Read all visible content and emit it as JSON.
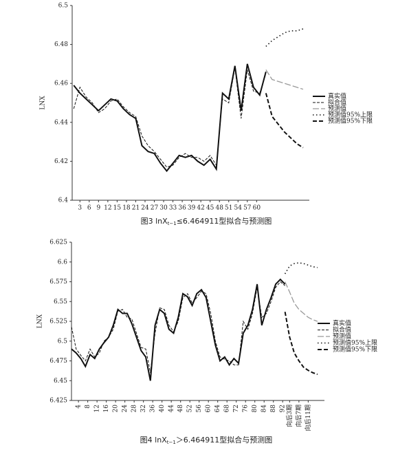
{
  "chart_data": [
    {
      "type": "line",
      "ylabel": "LNX",
      "caption": {
        "main": "图3 lnX",
        "sub": "t−1",
        "rest": "≤6.464911型拟合与预测图"
      },
      "x": [
        1,
        3,
        5,
        7,
        9,
        11,
        13,
        15,
        17,
        19,
        21,
        23,
        25,
        27,
        29,
        31,
        33,
        35,
        37,
        39,
        41,
        43,
        45,
        47,
        49,
        51,
        53,
        55,
        57,
        59,
        61,
        63,
        65,
        67,
        69,
        71,
        73,
        75
      ],
      "xlim": [
        0.5,
        77
      ],
      "xticks": [
        3,
        6,
        9,
        12,
        15,
        18,
        21,
        24,
        27,
        30,
        33,
        36,
        39,
        42,
        45,
        48,
        51,
        54,
        57,
        60
      ],
      "ylim": [
        6.4,
        6.5
      ],
      "yticks": [
        6.4,
        6.42,
        6.44,
        6.46,
        6.48,
        6.5
      ],
      "series": [
        {
          "name": "真实值",
          "color": "#111111",
          "style": "solid",
          "values": [
            6.459,
            6.455,
            6.452,
            6.449,
            6.446,
            6.449,
            6.452,
            6.451,
            6.447,
            6.444,
            6.442,
            6.428,
            6.425,
            6.424,
            6.419,
            6.415,
            6.419,
            6.423,
            6.422,
            6.423,
            6.42,
            6.418,
            6.421,
            6.416,
            6.455,
            6.452,
            6.469,
            6.446,
            6.47,
            6.458,
            6.454,
            6.466,
            null,
            null,
            null,
            null,
            null,
            null
          ]
        },
        {
          "name": "拟合值",
          "color": "#111111",
          "style": "dashed",
          "values": [
            6.447,
            6.458,
            6.453,
            6.45,
            6.445,
            6.447,
            6.451,
            6.452,
            6.448,
            6.445,
            6.443,
            6.433,
            6.428,
            6.425,
            6.421,
            6.417,
            6.418,
            6.422,
            6.424,
            6.422,
            6.422,
            6.42,
            6.423,
            6.418,
            6.452,
            6.45,
            6.468,
            6.442,
            6.467,
            6.456,
            6.455,
            6.465,
            null,
            null,
            null,
            null,
            null,
            null
          ]
        },
        {
          "name": "预测值",
          "color": "#999999",
          "style": "long-dash",
          "values": [
            null,
            null,
            null,
            null,
            null,
            null,
            null,
            null,
            null,
            null,
            null,
            null,
            null,
            null,
            null,
            null,
            null,
            null,
            null,
            null,
            null,
            null,
            null,
            null,
            null,
            null,
            null,
            null,
            null,
            null,
            null,
            6.467,
            6.462,
            6.461,
            6.46,
            6.459,
            6.458,
            6.457
          ]
        },
        {
          "name": "预测值95%上限",
          "color": "#111111",
          "style": "dotted",
          "values": [
            null,
            null,
            null,
            null,
            null,
            null,
            null,
            null,
            null,
            null,
            null,
            null,
            null,
            null,
            null,
            null,
            null,
            null,
            null,
            null,
            null,
            null,
            null,
            null,
            null,
            null,
            null,
            null,
            null,
            null,
            null,
            6.479,
            6.482,
            6.484,
            6.486,
            6.487,
            6.487,
            6.488
          ]
        },
        {
          "name": "预测值95%下限",
          "color": "#111111",
          "style": "bold-dashed",
          "values": [
            null,
            null,
            null,
            null,
            null,
            null,
            null,
            null,
            null,
            null,
            null,
            null,
            null,
            null,
            null,
            null,
            null,
            null,
            null,
            null,
            null,
            null,
            null,
            null,
            null,
            null,
            null,
            null,
            null,
            null,
            null,
            6.455,
            6.443,
            6.439,
            6.435,
            6.432,
            6.429,
            6.427
          ]
        }
      ]
    },
    {
      "type": "line",
      "ylabel": "LNX",
      "caption": {
        "main": "图4 lnX",
        "sub": "t−1",
        "rest": "＞6.464911型拟合与预测图"
      },
      "x": [
        1,
        3,
        5,
        7,
        9,
        11,
        13,
        15,
        17,
        19,
        21,
        23,
        25,
        27,
        29,
        31,
        33,
        35,
        37,
        39,
        41,
        43,
        45,
        47,
        49,
        51,
        53,
        55,
        57,
        59,
        61,
        63,
        65,
        67,
        69,
        71,
        73,
        75,
        77,
        79,
        81,
        83,
        85,
        87,
        89,
        91,
        93,
        95,
        97,
        99,
        101,
        103,
        105,
        107
      ],
      "xlim": [
        1,
        110
      ],
      "xticks": [
        4,
        8,
        12,
        16,
        20,
        24,
        28,
        32,
        36,
        40,
        44,
        48,
        52,
        56,
        60,
        64,
        68,
        72,
        76,
        80,
        84,
        88,
        92,
        {
          "value": 95,
          "label": "向后3期"
        },
        {
          "value": 99,
          "label": "向后7期"
        },
        {
          "value": 103,
          "label": "向后11期"
        }
      ],
      "ylim": [
        6.425,
        6.625
      ],
      "yticks": [
        6.425,
        6.45,
        6.475,
        6.5,
        6.525,
        6.55,
        6.575,
        6.6,
        6.625
      ],
      "series": [
        {
          "name": "真实值",
          "color": "#111111",
          "style": "solid",
          "values": [
            6.49,
            6.485,
            6.478,
            6.468,
            6.483,
            6.478,
            6.49,
            6.498,
            6.505,
            6.52,
            6.54,
            6.535,
            6.535,
            6.522,
            6.505,
            6.488,
            6.48,
            6.45,
            6.52,
            6.54,
            6.535,
            6.515,
            6.51,
            6.53,
            6.56,
            6.556,
            6.545,
            6.56,
            6.565,
            6.555,
            6.525,
            6.495,
            6.475,
            6.48,
            6.47,
            6.478,
            6.472,
            6.51,
            6.52,
            6.54,
            6.572,
            6.52,
            6.54,
            6.555,
            6.572,
            6.578,
            6.572,
            null,
            null,
            null,
            null,
            null,
            null,
            null
          ]
        },
        {
          "name": "拟合值",
          "color": "#111111",
          "style": "dashed",
          "values": [
            6.518,
            6.49,
            6.482,
            6.475,
            6.49,
            6.48,
            6.485,
            6.5,
            6.505,
            6.515,
            6.538,
            6.54,
            6.53,
            6.528,
            6.51,
            6.492,
            6.49,
            6.46,
            6.51,
            6.542,
            6.54,
            6.52,
            6.512,
            6.525,
            6.555,
            6.56,
            6.548,
            6.555,
            6.563,
            6.56,
            6.535,
            6.5,
            6.48,
            6.477,
            6.475,
            6.47,
            6.47,
            6.525,
            6.515,
            6.535,
            6.568,
            6.53,
            6.535,
            6.55,
            6.568,
            6.575,
            6.57,
            null,
            null,
            null,
            null,
            null,
            null,
            null
          ]
        },
        {
          "name": "预测值",
          "color": "#999999",
          "style": "long-dash",
          "values": [
            null,
            null,
            null,
            null,
            null,
            null,
            null,
            null,
            null,
            null,
            null,
            null,
            null,
            null,
            null,
            null,
            null,
            null,
            null,
            null,
            null,
            null,
            null,
            null,
            null,
            null,
            null,
            null,
            null,
            null,
            null,
            null,
            null,
            null,
            null,
            null,
            null,
            null,
            null,
            null,
            null,
            null,
            null,
            null,
            null,
            null,
            6.575,
            6.562,
            6.548,
            6.54,
            6.535,
            6.53,
            6.527,
            6.525
          ]
        },
        {
          "name": "预测值95%上限",
          "color": "#111111",
          "style": "dotted",
          "values": [
            null,
            null,
            null,
            null,
            null,
            null,
            null,
            null,
            null,
            null,
            null,
            null,
            null,
            null,
            null,
            null,
            null,
            null,
            null,
            null,
            null,
            null,
            null,
            null,
            null,
            null,
            null,
            null,
            null,
            null,
            null,
            null,
            null,
            null,
            null,
            null,
            null,
            null,
            null,
            null,
            null,
            null,
            null,
            null,
            null,
            null,
            6.585,
            6.595,
            6.598,
            6.599,
            6.598,
            6.596,
            6.594,
            6.593
          ]
        },
        {
          "name": "预测值95%下限",
          "color": "#111111",
          "style": "bold-dashed",
          "values": [
            null,
            null,
            null,
            null,
            null,
            null,
            null,
            null,
            null,
            null,
            null,
            null,
            null,
            null,
            null,
            null,
            null,
            null,
            null,
            null,
            null,
            null,
            null,
            null,
            null,
            null,
            null,
            null,
            null,
            null,
            null,
            null,
            null,
            null,
            null,
            null,
            null,
            null,
            null,
            null,
            null,
            null,
            null,
            null,
            null,
            null,
            6.537,
            6.505,
            6.485,
            6.475,
            6.467,
            6.463,
            6.46,
            6.458
          ]
        }
      ]
    }
  ]
}
